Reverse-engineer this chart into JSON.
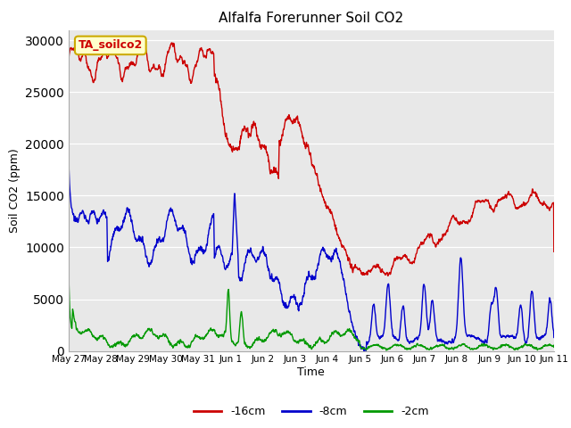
{
  "title": "Alfalfa Forerunner Soil CO2",
  "xlabel": "Time",
  "ylabel": "Soil CO2 (ppm)",
  "ylim": [
    0,
    31000
  ],
  "yticks": [
    0,
    5000,
    10000,
    15000,
    20000,
    25000,
    30000
  ],
  "legend_labels": [
    "-16cm",
    "-8cm",
    "-2cm"
  ],
  "legend_colors": [
    "#cc0000",
    "#0000cc",
    "#009900"
  ],
  "annotation_text": "TA_soilco2",
  "annotation_color": "#cc0000",
  "annotation_bg": "#ffffcc",
  "annotation_edge": "#ccaa00",
  "line_width": 1.0,
  "bg_color": "#ffffff",
  "plot_bg": "#e8e8e8",
  "xtick_labels": [
    "May 27",
    "May 28",
    "May 29",
    "May 30",
    "May 31",
    "Jun 1",
    "Jun 2",
    "Jun 3",
    "Jun 4",
    "Jun 5",
    "Jun 6",
    "Jun 7",
    "Jun 8",
    "Jun 9",
    "Jun 10",
    "Jun 11"
  ],
  "xtick_positions": [
    0,
    1,
    2,
    3,
    4,
    5,
    6,
    7,
    8,
    9,
    10,
    11,
    12,
    13,
    14,
    15
  ]
}
